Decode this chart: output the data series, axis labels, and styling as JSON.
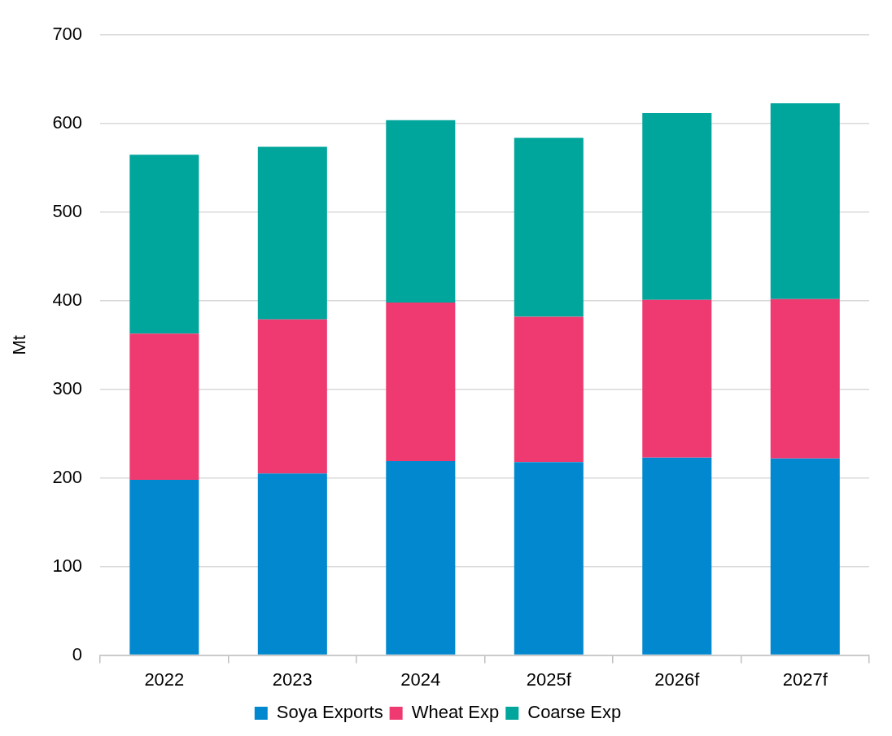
{
  "chart_data": {
    "type": "bar",
    "ylabel": "Mt",
    "categories": [
      "2022",
      "2023",
      "2024",
      "2025f",
      "2026f",
      "2027f"
    ],
    "series": [
      {
        "name": "Soya Exports",
        "color": "#0288cf",
        "values": [
          198,
          205,
          219,
          218,
          223,
          222
        ]
      },
      {
        "name": "Wheat Exp",
        "color": "#ee3a70",
        "values": [
          165,
          174,
          179,
          164,
          178,
          180
        ]
      },
      {
        "name": "Coarse Exp",
        "color": "#00a59c",
        "values": [
          202,
          195,
          206,
          202,
          211,
          221
        ]
      }
    ],
    "stacked": true,
    "ylim": [
      0,
      700
    ],
    "yticks": [
      0,
      100,
      200,
      300,
      400,
      500,
      600,
      700
    ],
    "grid": "y",
    "legend": "bottom"
  }
}
